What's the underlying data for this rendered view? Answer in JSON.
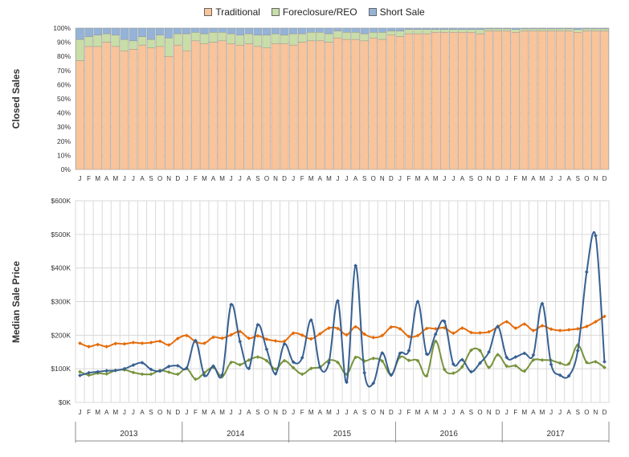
{
  "chart_data": [
    {
      "type": "bar",
      "stacked": true,
      "ylabel": "Closed Sales",
      "ylim": [
        0,
        100
      ],
      "y_ticks": [
        "0%",
        "10%",
        "20%",
        "30%",
        "40%",
        "50%",
        "60%",
        "70%",
        "80%",
        "90%",
        "100%"
      ],
      "grid": true,
      "legend_position": "top-center",
      "categories": [
        "J",
        "F",
        "M",
        "A",
        "M",
        "J",
        "J",
        "A",
        "S",
        "O",
        "N",
        "D",
        "J",
        "F",
        "M",
        "A",
        "M",
        "J",
        "J",
        "A",
        "S",
        "O",
        "N",
        "D",
        "J",
        "F",
        "M",
        "A",
        "M",
        "J",
        "J",
        "A",
        "S",
        "O",
        "N",
        "D",
        "J",
        "F",
        "M",
        "A",
        "M",
        "J",
        "J",
        "A",
        "S",
        "O",
        "N",
        "D",
        "J",
        "F",
        "M",
        "A",
        "M",
        "J",
        "J",
        "A",
        "S",
        "O",
        "N",
        "D"
      ],
      "series": [
        {
          "name": "Traditional",
          "color": "#F9C49A",
          "values": [
            77,
            87,
            87,
            90,
            87,
            84,
            85,
            88,
            86,
            87,
            80,
            88,
            84,
            91,
            89,
            90,
            91,
            89,
            88,
            89,
            87,
            86,
            89,
            89,
            88,
            90,
            91,
            91,
            90,
            93,
            92,
            92,
            91,
            93,
            92,
            95,
            94,
            96,
            96,
            96,
            97,
            97,
            97,
            97,
            97,
            96,
            98,
            98,
            98,
            97,
            98,
            98,
            98,
            98,
            98,
            98,
            97,
            98,
            98,
            98
          ]
        },
        {
          "name": "Foreclosure/REO",
          "color": "#C9DDA8",
          "values": [
            15,
            7,
            8,
            6,
            8,
            8,
            6,
            6,
            6,
            8,
            13,
            8,
            12,
            6,
            7,
            7,
            6,
            7,
            7,
            7,
            8,
            9,
            7,
            6,
            8,
            6,
            6,
            6,
            6,
            5,
            5,
            5,
            5,
            4,
            5,
            3,
            4,
            3,
            3,
            3,
            2,
            2,
            2,
            2,
            2,
            3,
            1.5,
            1.5,
            1.5,
            2,
            1.5,
            1.5,
            1.5,
            1.5,
            1.5,
            1.5,
            2,
            1.5,
            1.5,
            1.5
          ]
        },
        {
          "name": "Short Sale",
          "color": "#95B3D7",
          "values": [
            8,
            6,
            5,
            4,
            5,
            8,
            9,
            6,
            8,
            5,
            7,
            4,
            4,
            3,
            4,
            3,
            3,
            4,
            5,
            4,
            5,
            5,
            4,
            5,
            4,
            4,
            3,
            3,
            4,
            2,
            3,
            3,
            4,
            3,
            3,
            2,
            2,
            1,
            1,
            1,
            1,
            1,
            1,
            1,
            1,
            1,
            0.5,
            0.5,
            0.5,
            1,
            0.5,
            0.5,
            0.5,
            0.5,
            0.5,
            0.5,
            1,
            0.5,
            0.5,
            0.5
          ]
        }
      ]
    },
    {
      "type": "line",
      "ylabel": "Median Sale Price",
      "ylim": [
        0,
        600000
      ],
      "y_ticks": [
        "$0K",
        "$100K",
        "$200K",
        "$300K",
        "$400K",
        "$500K",
        "$600K"
      ],
      "grid": true,
      "categories": [
        "J",
        "F",
        "M",
        "A",
        "M",
        "J",
        "J",
        "A",
        "S",
        "O",
        "N",
        "D",
        "J",
        "F",
        "M",
        "A",
        "M",
        "J",
        "J",
        "A",
        "S",
        "O",
        "N",
        "D",
        "J",
        "F",
        "M",
        "A",
        "M",
        "J",
        "J",
        "A",
        "S",
        "O",
        "N",
        "D",
        "J",
        "F",
        "M",
        "A",
        "M",
        "J",
        "J",
        "A",
        "S",
        "O",
        "N",
        "D",
        "J",
        "F",
        "M",
        "A",
        "M",
        "J",
        "J",
        "A",
        "S",
        "O",
        "N",
        "D"
      ],
      "years": [
        "2013",
        "2014",
        "2015",
        "2016",
        "2017"
      ],
      "series": [
        {
          "name": "Traditional",
          "color": "#E46C0A",
          "values": [
            176000,
            166000,
            172000,
            166000,
            175000,
            174000,
            178000,
            176000,
            178000,
            182000,
            171000,
            190000,
            199000,
            181000,
            176000,
            194000,
            191000,
            201000,
            211000,
            191000,
            198000,
            188000,
            183000,
            182000,
            206000,
            200000,
            189000,
            204000,
            221000,
            220000,
            201000,
            225000,
            203000,
            193000,
            199000,
            224000,
            219000,
            196000,
            199000,
            220000,
            219000,
            222000,
            206000,
            221000,
            208000,
            207000,
            210000,
            225000,
            240000,
            221000,
            233000,
            214000,
            228000,
            218000,
            214000,
            216000,
            219000,
            226000,
            240000,
            256000
          ]
        },
        {
          "name": "Foreclosure/REO",
          "color": "#77933C",
          "values": [
            91000,
            81000,
            87000,
            85000,
            95000,
            97000,
            89000,
            84000,
            84000,
            95000,
            90000,
            84000,
            101000,
            69000,
            88000,
            104000,
            77000,
            119000,
            112000,
            126000,
            135000,
            124000,
            99000,
            124000,
            103000,
            84000,
            101000,
            105000,
            125000,
            119000,
            84000,
            134000,
            123000,
            131000,
            123000,
            82000,
            135000,
            125000,
            124000,
            79000,
            182000,
            98000,
            87000,
            106000,
            155000,
            154000,
            104000,
            142000,
            108000,
            109000,
            93000,
            126000,
            126000,
            125000,
            117000,
            115000,
            171000,
            119000,
            121000,
            104000
          ]
        },
        {
          "name": "Short Sale",
          "color": "#376092",
          "values": [
            80000,
            88000,
            91000,
            94000,
            95000,
            100000,
            111000,
            118000,
            98000,
            93000,
            107000,
            109000,
            102000,
            184000,
            80000,
            108000,
            82000,
            291000,
            181000,
            101000,
            231000,
            158000,
            85000,
            174000,
            120000,
            133000,
            245000,
            105000,
            118000,
            302000,
            60000,
            407000,
            88000,
            57000,
            147000,
            81000,
            146000,
            154000,
            300000,
            144000,
            203000,
            241000,
            114000,
            127000,
            91000,
            117000,
            150000,
            226000,
            134000,
            135000,
            146000,
            141000,
            294000,
            113000,
            81000,
            79000,
            154000,
            388000,
            496000,
            121000
          ]
        }
      ]
    }
  ]
}
